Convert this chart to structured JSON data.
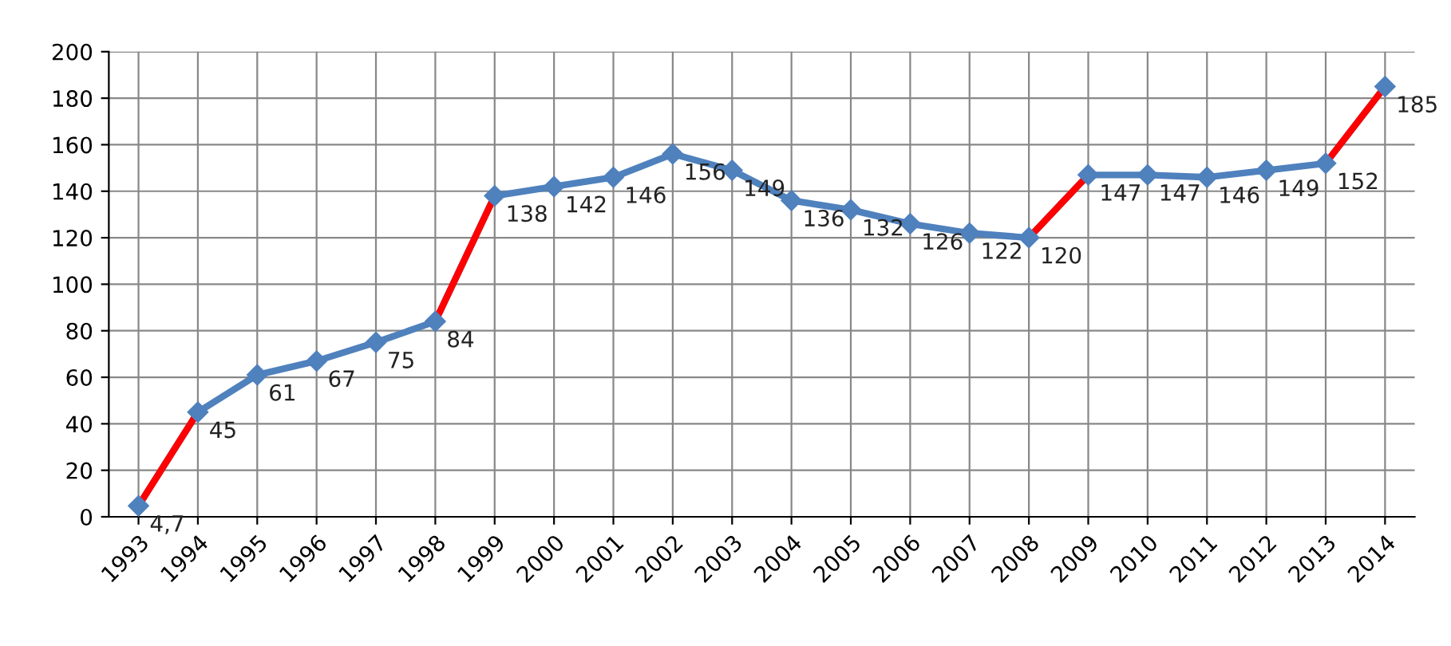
{
  "chart_data": {
    "type": "line",
    "categories": [
      "1993",
      "1994",
      "1995",
      "1996",
      "1997",
      "1998",
      "1999",
      "2000",
      "2001",
      "2002",
      "2003",
      "2004",
      "2005",
      "2006",
      "2007",
      "2008",
      "2009",
      "2010",
      "2011",
      "2012",
      "2013",
      "2014"
    ],
    "series": [
      {
        "color": "#4f81bd",
        "marker": "diamond",
        "values": [
          4.7,
          45,
          61,
          67,
          75,
          84,
          138,
          142,
          146,
          156,
          149,
          136,
          132,
          126,
          122,
          120,
          147,
          147,
          146,
          149,
          152,
          185
        ],
        "value_labels": [
          "4,7",
          "45",
          "61",
          "67",
          "75",
          "84",
          "138",
          "142",
          "146",
          "156",
          "149",
          "136",
          "132",
          "126",
          "122",
          "120",
          "147",
          "147",
          "146",
          "149",
          "152",
          "185"
        ]
      },
      {
        "color": "#ff0000",
        "marker": "none",
        "values": [
          4.7,
          45,
          null,
          null,
          null,
          84,
          138,
          null,
          null,
          null,
          null,
          null,
          null,
          null,
          null,
          120,
          147,
          null,
          null,
          null,
          152,
          185
        ]
      }
    ],
    "ylim": [
      0,
      200
    ],
    "yticks": [
      0,
      20,
      40,
      60,
      80,
      100,
      120,
      140,
      160,
      180,
      200
    ],
    "grid": true,
    "line_style": "solid"
  }
}
